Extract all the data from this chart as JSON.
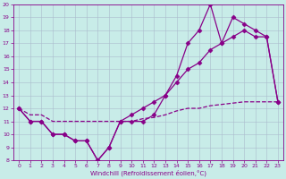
{
  "title": "",
  "xlabel": "Windchill (Refroidissement éolien,°C)",
  "ylabel": "",
  "bg_color": "#c8ece8",
  "line_color": "#880088",
  "grid_color": "#aabbcc",
  "hours": [
    0,
    1,
    2,
    3,
    4,
    5,
    6,
    7,
    8,
    9,
    10,
    11,
    12,
    13,
    14,
    15,
    16,
    17,
    18,
    19,
    20,
    21,
    22,
    23
  ],
  "line1": [
    12,
    11,
    11,
    10,
    10,
    9.5,
    9.5,
    8,
    9,
    11,
    11,
    11,
    11.5,
    13,
    14.5,
    17,
    18,
    20,
    17,
    19,
    18.5,
    18,
    17.5,
    12.5
  ],
  "line2": [
    12,
    11,
    11,
    10,
    10,
    9.5,
    9.5,
    8,
    9,
    11,
    11.5,
    12,
    12.5,
    13,
    14,
    15,
    15.5,
    16.5,
    17,
    17.5,
    18,
    17.5,
    17.5,
    12.5
  ],
  "line3": [
    12,
    11.5,
    11.5,
    11,
    11,
    11,
    11,
    11,
    11,
    11,
    11,
    11.2,
    11.3,
    11.5,
    11.8,
    12,
    12,
    12.2,
    12.3,
    12.4,
    12.5,
    12.5,
    12.5,
    12.5
  ],
  "xlim": [
    -0.5,
    23.5
  ],
  "ylim": [
    8,
    20
  ],
  "yticks": [
    8,
    9,
    10,
    11,
    12,
    13,
    14,
    15,
    16,
    17,
    18,
    19,
    20
  ],
  "xticks": [
    0,
    1,
    2,
    3,
    4,
    5,
    6,
    7,
    8,
    9,
    10,
    11,
    12,
    13,
    14,
    15,
    16,
    17,
    18,
    19,
    20,
    21,
    22,
    23
  ],
  "marker": "D",
  "markersize": 2.5,
  "linewidth": 0.9
}
